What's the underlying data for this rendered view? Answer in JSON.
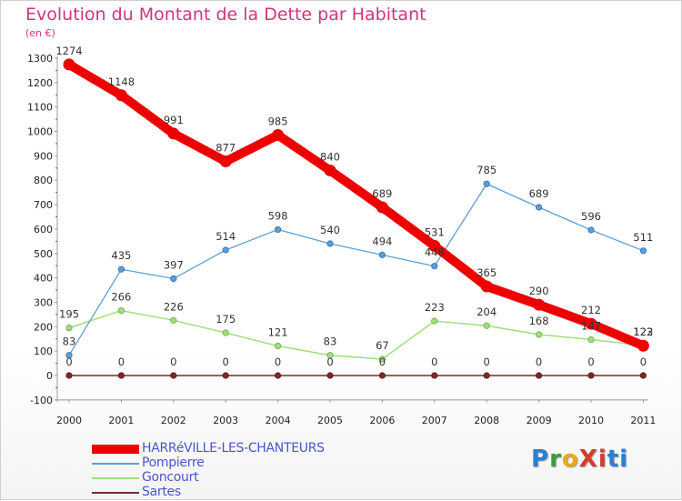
{
  "title": "Evolution du Montant de la Dette par Habitant",
  "subtitle": "(en €)",
  "logo": {
    "text": "ProXiti",
    "colors": [
      "#2c7fd0",
      "#3a9e3a",
      "#e7a91a",
      "#d63b2b",
      "#d63b2b",
      "#2c7fd0",
      "#2c7fd0"
    ]
  },
  "chart_data": {
    "type": "line",
    "x": [
      "2000",
      "2001",
      "2002",
      "2003",
      "2004",
      "2005",
      "2006",
      "2007",
      "2008",
      "2009",
      "2010",
      "2011"
    ],
    "ylim": [
      -100,
      1300
    ],
    "yticks": [
      "-100",
      "0",
      "100",
      "200",
      "300",
      "400",
      "500",
      "600",
      "700",
      "800",
      "900",
      "1000",
      "1100",
      "1200",
      "1300"
    ],
    "grid": false,
    "legend_position": "bottom-left",
    "series": [
      {
        "name": "HARRéVILLE-LES-CHANTEURS",
        "color": "#ee0000",
        "width": 10,
        "values": [
          1274,
          1148,
          991,
          877,
          985,
          840,
          689,
          531,
          365,
          290,
          212,
          122
        ],
        "labels": [
          "1274",
          "1148",
          "991",
          "877",
          "985",
          "840",
          "689",
          "531",
          "365",
          "290",
          "212",
          "122"
        ]
      },
      {
        "name": "Pompierre",
        "color": "#5c9fd6",
        "width": 1.3,
        "values": [
          83,
          435,
          397,
          514,
          598,
          540,
          494,
          448,
          785,
          689,
          596,
          511
        ],
        "labels": [
          "83",
          "435",
          "397",
          "514",
          "598",
          "540",
          "494",
          "448",
          "785",
          "689",
          "596",
          "511"
        ]
      },
      {
        "name": "Goncourt",
        "color": "#9fe07a",
        "width": 1.5,
        "values": [
          195,
          266,
          226,
          175,
          121,
          83,
          67,
          223,
          204,
          168,
          147,
          123
        ],
        "labels": [
          "195",
          "266",
          "226",
          "175",
          "121",
          "83",
          "67",
          "223",
          "204",
          "168",
          "147",
          "123"
        ]
      },
      {
        "name": "Sartes",
        "color": "#7a2a2a",
        "width": 1.5,
        "values": [
          0,
          0,
          0,
          0,
          0,
          0,
          0,
          0,
          0,
          0,
          0,
          0
        ],
        "labels": [
          "0",
          "0",
          "0",
          "0",
          "0",
          "0",
          "0",
          "0",
          "0",
          "0",
          "0",
          "0"
        ]
      }
    ]
  }
}
